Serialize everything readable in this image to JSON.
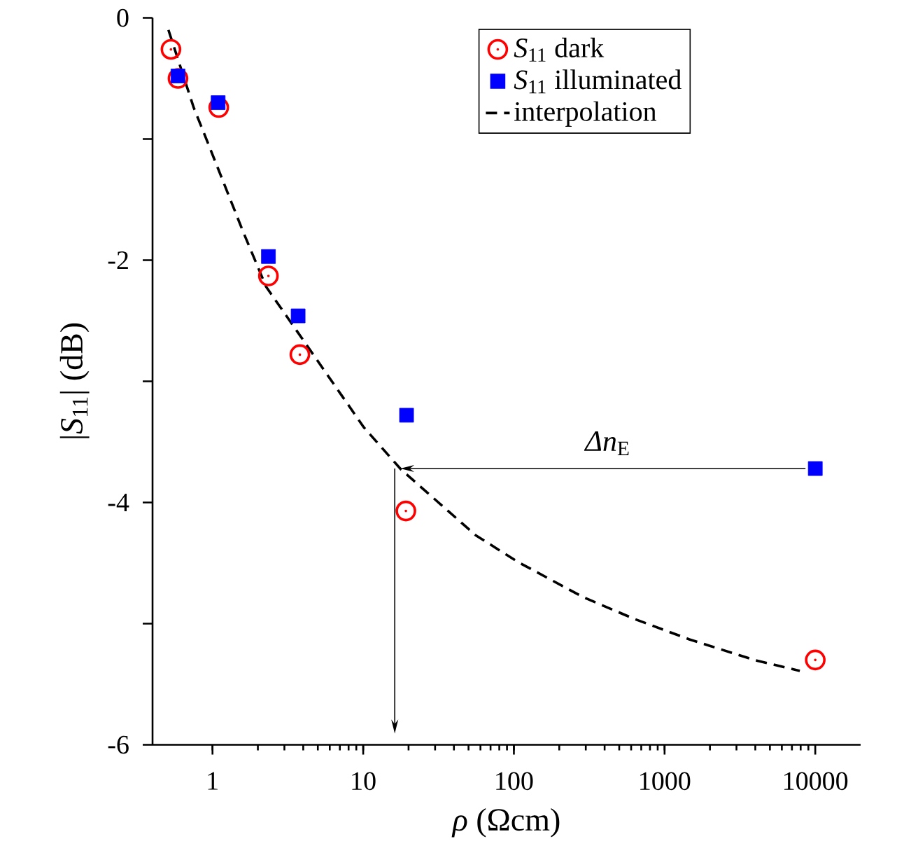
{
  "chart_data": {
    "type": "scatter",
    "xlabel": "*ρ* (Ωcm)",
    "ylabel": "|*S*$_{11}$| (dB)",
    "log": "x",
    "xlim": [
      0.4,
      20000
    ],
    "ylim": [
      -6,
      0
    ],
    "xticks": [
      1,
      10,
      100,
      1000,
      10000
    ],
    "yticks": [
      0,
      {
        "value": -1,
        "label": null
      },
      -2,
      {
        "value": -3,
        "label": null
      },
      -4,
      {
        "value": -5,
        "label": null
      },
      -6
    ],
    "legend": "top right",
    "grid": false,
    "series": [
      {
        "name": "*S*$_{11}$ dark",
        "marker": "circle",
        "color": "#ff0000",
        "x": [
          0.53,
          0.59,
          1.1,
          2.35,
          3.8,
          19.2,
          10000
        ],
        "values": [
          -0.26,
          -0.5,
          -0.74,
          -2.13,
          -2.78,
          -4.07,
          -5.3
        ]
      },
      {
        "name": "*S*$_{11}$ illuminated",
        "marker": "square",
        "color": "#0000ff",
        "x": [
          0.59,
          1.09,
          2.35,
          3.7,
          19.4,
          10000
        ],
        "values": [
          -0.48,
          -0.7,
          -1.97,
          -2.46,
          -3.28,
          -3.72
        ]
      },
      {
        "name": "interpolation",
        "type": "line",
        "line_style": "dashed",
        "marker": "none",
        "color": "#000000",
        "x": [
          0.51,
          0.75,
          0.93,
          1.59,
          2.27,
          10.1,
          17.9,
          55.7,
          106,
          287,
          626,
          1460,
          3940,
          7900
        ],
        "values": [
          -0.1,
          -0.74,
          -1.03,
          -1.76,
          -2.22,
          -3.38,
          -3.73,
          -4.27,
          -4.49,
          -4.78,
          -4.96,
          -5.13,
          -5.3,
          -5.39
        ]
      }
    ],
    "annotations": [
      "*Δn*$_{E}$"
    ]
  }
}
